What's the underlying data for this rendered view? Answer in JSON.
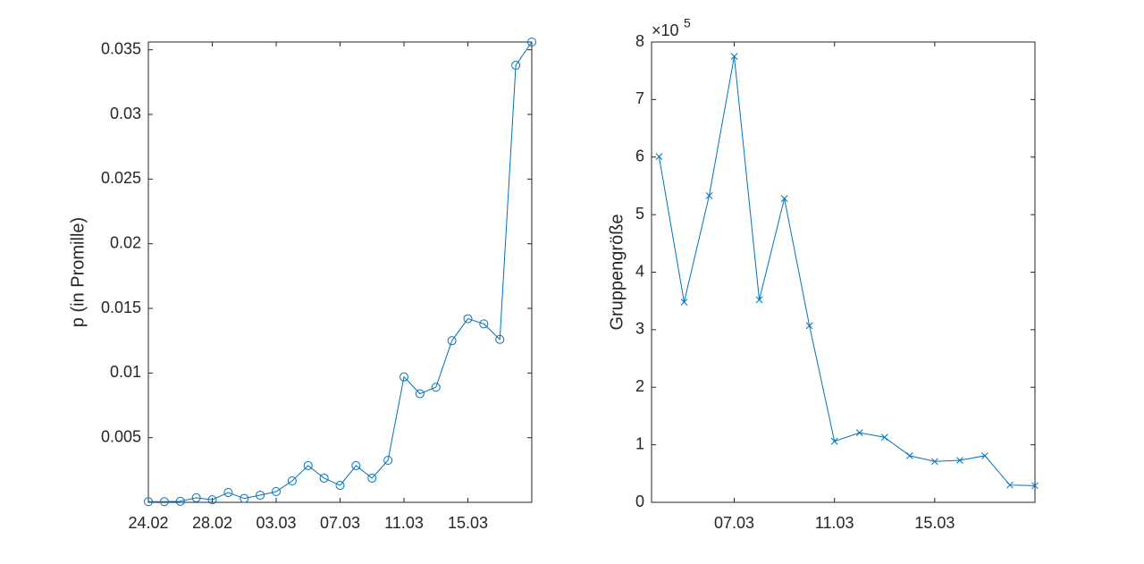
{
  "chart_data": [
    {
      "type": "line",
      "marker": "circle",
      "color": "#0072BD",
      "ylabel": "p (in Promille)",
      "categories": [
        "24.02",
        null,
        null,
        null,
        "28.02",
        null,
        null,
        null,
        "03.03",
        null,
        null,
        null,
        "07.03",
        null,
        null,
        null,
        "11.03",
        null,
        null,
        null,
        "15.03",
        null,
        null,
        null,
        null
      ],
      "values": [
        5e-05,
        5e-05,
        8e-05,
        0.00035,
        0.0002,
        0.00076,
        0.0003,
        0.00055,
        0.00083,
        0.00166,
        0.00284,
        0.00187,
        0.00131,
        0.00284,
        0.00187,
        0.00325,
        0.0097,
        0.0084,
        0.0089,
        0.0125,
        0.0142,
        0.0138,
        0.0126,
        0.0338,
        0.0356
      ],
      "ylim": [
        0,
        0.0356
      ],
      "yticks": [
        0.005,
        0.01,
        0.015,
        0.02,
        0.025,
        0.03,
        0.035
      ]
    },
    {
      "type": "line",
      "marker": "x",
      "color": "#0072BD",
      "ylabel": "Gruppengröße",
      "y_exponent_base": "×10",
      "y_exponent": "5",
      "x": [
        4,
        5,
        6,
        7,
        8,
        9,
        10,
        11,
        12,
        13,
        14,
        15,
        16,
        17,
        18,
        19
      ],
      "values": [
        601000,
        348000,
        533000,
        775000,
        352000,
        528000,
        307000,
        106000,
        121000,
        113000,
        81000,
        71000,
        73000,
        81000,
        30000,
        29000
      ],
      "xlim": [
        3.7,
        19
      ],
      "xticks": [
        {
          "value": 7,
          "label": "07.03"
        },
        {
          "value": 11,
          "label": "11.03"
        },
        {
          "value": 15,
          "label": "15.03"
        }
      ],
      "ylim": [
        0,
        800000
      ],
      "yticks": [
        {
          "value": 0,
          "label": "0"
        },
        {
          "value": 100000,
          "label": "1"
        },
        {
          "value": 200000,
          "label": "2"
        },
        {
          "value": 300000,
          "label": "3"
        },
        {
          "value": 400000,
          "label": "4"
        },
        {
          "value": 500000,
          "label": "5"
        },
        {
          "value": 600000,
          "label": "6"
        },
        {
          "value": 700000,
          "label": "7"
        },
        {
          "value": 800000,
          "label": "8"
        }
      ]
    }
  ]
}
